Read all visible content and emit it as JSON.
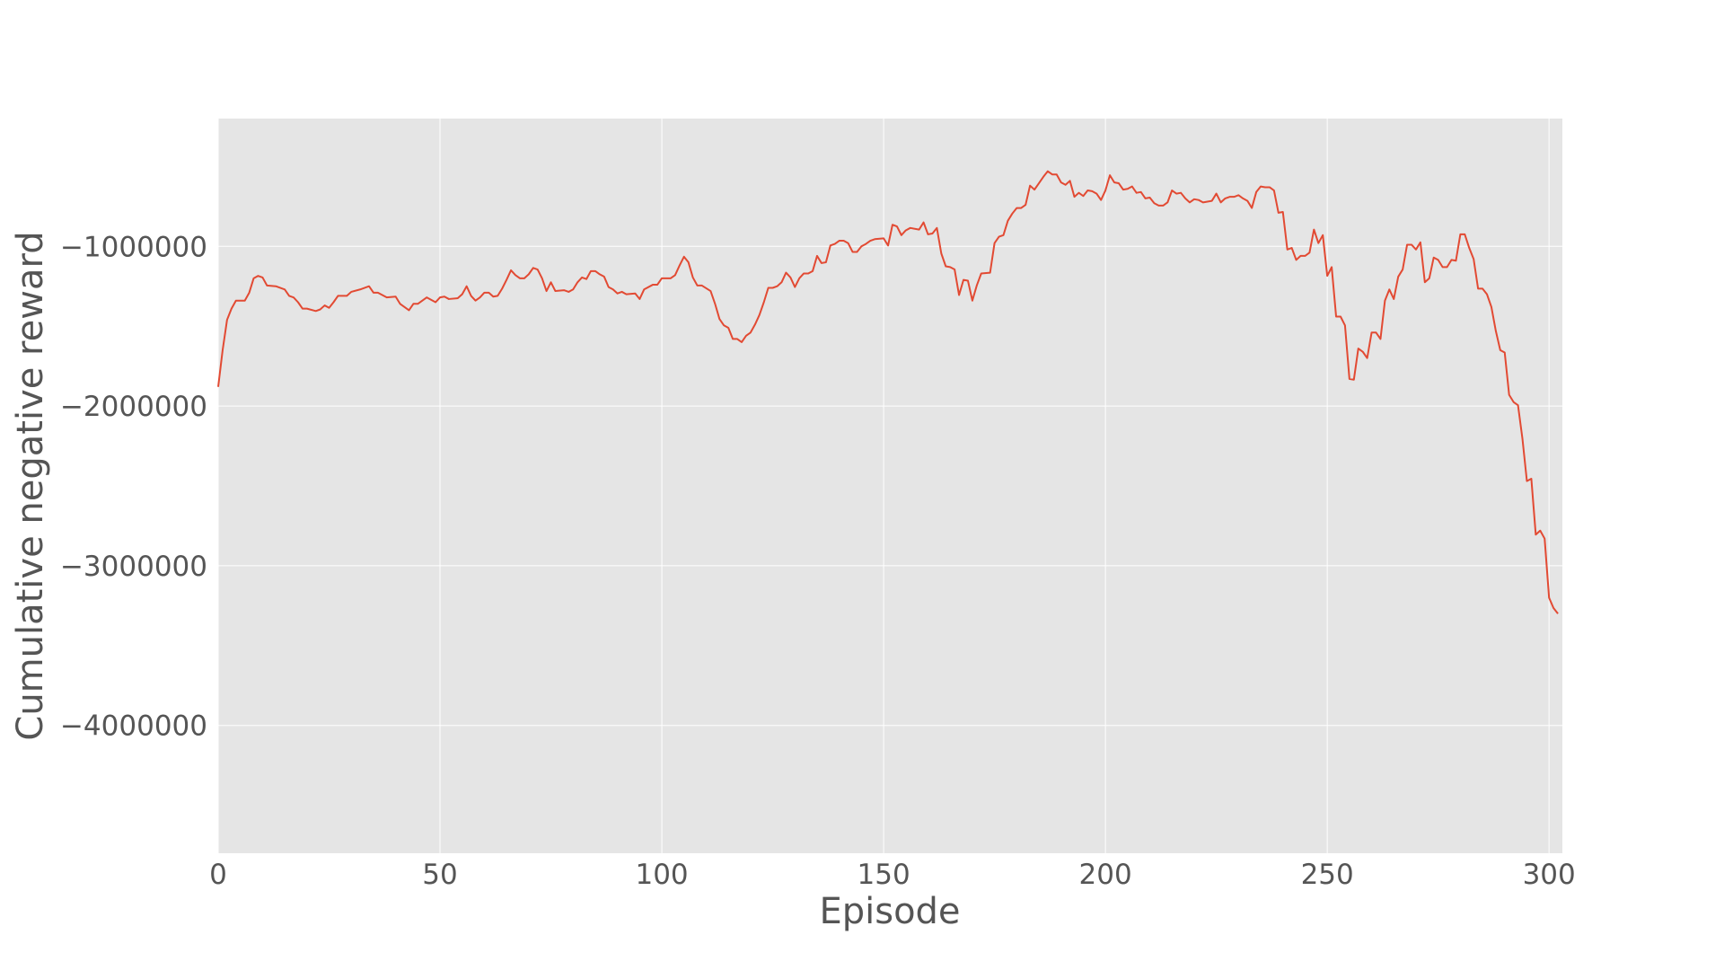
{
  "chart_data": {
    "type": "line",
    "style": "ggplot",
    "xlabel": "Episode",
    "ylabel": "Cumulative negative reward",
    "xlim": [
      0,
      303
    ],
    "ylim": [
      -4800000,
      -200000
    ],
    "grid": true,
    "x_ticks": [
      0,
      50,
      100,
      150,
      200,
      250,
      300
    ],
    "x_tick_labels": [
      "0",
      "50",
      "100",
      "150",
      "200",
      "250",
      "300"
    ],
    "y_ticks": [
      -1000000,
      -2000000,
      -3000000,
      -4000000
    ],
    "y_tick_labels": [
      "−1000000",
      "−2000000",
      "−3000000",
      "−4000000"
    ],
    "colors": {
      "line": "#E24A33",
      "plot_background": "#E5E5E5",
      "grid": "#FFFFFF",
      "text": "#555555"
    },
    "series": [
      {
        "points": [
          [
            0,
            -1880000
          ],
          [
            1,
            -1650000
          ],
          [
            2,
            -1460000
          ],
          [
            3,
            -1390000
          ],
          [
            4,
            -1340000
          ],
          [
            6,
            -1340000
          ],
          [
            7,
            -1290000
          ],
          [
            8,
            -1200000
          ],
          [
            9,
            -1185000
          ],
          [
            10,
            -1195000
          ],
          [
            11,
            -1245000
          ],
          [
            13,
            -1250000
          ],
          [
            15,
            -1270000
          ],
          [
            16,
            -1310000
          ],
          [
            17,
            -1320000
          ],
          [
            18,
            -1350000
          ],
          [
            19,
            -1390000
          ],
          [
            20,
            -1390000
          ],
          [
            22,
            -1405000
          ],
          [
            23,
            -1395000
          ],
          [
            24,
            -1370000
          ],
          [
            25,
            -1385000
          ],
          [
            26,
            -1350000
          ],
          [
            27,
            -1310000
          ],
          [
            29,
            -1310000
          ],
          [
            30,
            -1285000
          ],
          [
            32,
            -1270000
          ],
          [
            34,
            -1250000
          ],
          [
            35,
            -1290000
          ],
          [
            36,
            -1290000
          ],
          [
            38,
            -1320000
          ],
          [
            40,
            -1315000
          ],
          [
            41,
            -1360000
          ],
          [
            43,
            -1400000
          ],
          [
            44,
            -1360000
          ],
          [
            45,
            -1360000
          ],
          [
            47,
            -1320000
          ],
          [
            49,
            -1350000
          ],
          [
            50,
            -1320000
          ],
          [
            51,
            -1315000
          ],
          [
            52,
            -1330000
          ],
          [
            54,
            -1325000
          ],
          [
            55,
            -1300000
          ],
          [
            56,
            -1250000
          ],
          [
            57,
            -1310000
          ],
          [
            58,
            -1340000
          ],
          [
            59,
            -1320000
          ],
          [
            60,
            -1290000
          ],
          [
            61,
            -1290000
          ],
          [
            62,
            -1315000
          ],
          [
            63,
            -1310000
          ],
          [
            64,
            -1265000
          ],
          [
            65,
            -1210000
          ],
          [
            66,
            -1150000
          ],
          [
            67,
            -1180000
          ],
          [
            68,
            -1200000
          ],
          [
            69,
            -1200000
          ],
          [
            70,
            -1175000
          ],
          [
            71,
            -1135000
          ],
          [
            72,
            -1145000
          ],
          [
            73,
            -1200000
          ],
          [
            74,
            -1280000
          ],
          [
            75,
            -1225000
          ],
          [
            76,
            -1280000
          ],
          [
            78,
            -1275000
          ],
          [
            79,
            -1285000
          ],
          [
            80,
            -1270000
          ],
          [
            81,
            -1225000
          ],
          [
            82,
            -1195000
          ],
          [
            83,
            -1205000
          ],
          [
            84,
            -1155000
          ],
          [
            85,
            -1155000
          ],
          [
            86,
            -1175000
          ],
          [
            87,
            -1190000
          ],
          [
            88,
            -1255000
          ],
          [
            89,
            -1270000
          ],
          [
            90,
            -1295000
          ],
          [
            91,
            -1285000
          ],
          [
            92,
            -1300000
          ],
          [
            94,
            -1295000
          ],
          [
            95,
            -1330000
          ],
          [
            96,
            -1270000
          ],
          [
            98,
            -1240000
          ],
          [
            99,
            -1240000
          ],
          [
            100,
            -1200000
          ],
          [
            101,
            -1200000
          ],
          [
            102,
            -1200000
          ],
          [
            103,
            -1180000
          ],
          [
            104,
            -1120000
          ],
          [
            105,
            -1065000
          ],
          [
            106,
            -1100000
          ],
          [
            107,
            -1195000
          ],
          [
            108,
            -1245000
          ],
          [
            109,
            -1245000
          ],
          [
            111,
            -1280000
          ],
          [
            112,
            -1360000
          ],
          [
            113,
            -1455000
          ],
          [
            114,
            -1495000
          ],
          [
            115,
            -1510000
          ],
          [
            116,
            -1580000
          ],
          [
            117,
            -1580000
          ],
          [
            118,
            -1600000
          ],
          [
            119,
            -1560000
          ],
          [
            120,
            -1540000
          ],
          [
            121,
            -1490000
          ],
          [
            122,
            -1430000
          ],
          [
            123,
            -1350000
          ],
          [
            124,
            -1260000
          ],
          [
            125,
            -1260000
          ],
          [
            126,
            -1250000
          ],
          [
            127,
            -1225000
          ],
          [
            128,
            -1165000
          ],
          [
            129,
            -1195000
          ],
          [
            130,
            -1255000
          ],
          [
            131,
            -1200000
          ],
          [
            132,
            -1170000
          ],
          [
            133,
            -1170000
          ],
          [
            134,
            -1155000
          ],
          [
            135,
            -1060000
          ],
          [
            136,
            -1105000
          ],
          [
            137,
            -1100000
          ],
          [
            138,
            -995000
          ],
          [
            139,
            -985000
          ],
          [
            140,
            -965000
          ],
          [
            141,
            -965000
          ],
          [
            142,
            -980000
          ],
          [
            143,
            -1035000
          ],
          [
            144,
            -1035000
          ],
          [
            145,
            -1000000
          ],
          [
            146,
            -985000
          ],
          [
            147,
            -965000
          ],
          [
            148,
            -955000
          ],
          [
            150,
            -950000
          ],
          [
            151,
            -995000
          ],
          [
            152,
            -865000
          ],
          [
            153,
            -875000
          ],
          [
            154,
            -930000
          ],
          [
            155,
            -900000
          ],
          [
            156,
            -885000
          ],
          [
            158,
            -895000
          ],
          [
            159,
            -850000
          ],
          [
            160,
            -925000
          ],
          [
            161,
            -920000
          ],
          [
            162,
            -885000
          ],
          [
            163,
            -1045000
          ],
          [
            164,
            -1125000
          ],
          [
            165,
            -1130000
          ],
          [
            166,
            -1145000
          ],
          [
            167,
            -1305000
          ],
          [
            168,
            -1210000
          ],
          [
            169,
            -1215000
          ],
          [
            170,
            -1340000
          ],
          [
            171,
            -1245000
          ],
          [
            172,
            -1170000
          ],
          [
            174,
            -1165000
          ],
          [
            175,
            -980000
          ],
          [
            176,
            -940000
          ],
          [
            177,
            -930000
          ],
          [
            178,
            -840000
          ],
          [
            179,
            -795000
          ],
          [
            180,
            -760000
          ],
          [
            181,
            -760000
          ],
          [
            182,
            -740000
          ],
          [
            183,
            -620000
          ],
          [
            184,
            -645000
          ],
          [
            185,
            -605000
          ],
          [
            186,
            -565000
          ],
          [
            187,
            -530000
          ],
          [
            188,
            -550000
          ],
          [
            189,
            -550000
          ],
          [
            190,
            -600000
          ],
          [
            191,
            -615000
          ],
          [
            192,
            -590000
          ],
          [
            193,
            -690000
          ],
          [
            194,
            -665000
          ],
          [
            195,
            -685000
          ],
          [
            196,
            -650000
          ],
          [
            197,
            -655000
          ],
          [
            198,
            -670000
          ],
          [
            199,
            -710000
          ],
          [
            200,
            -650000
          ],
          [
            201,
            -555000
          ],
          [
            202,
            -600000
          ],
          [
            203,
            -605000
          ],
          [
            204,
            -645000
          ],
          [
            205,
            -640000
          ],
          [
            206,
            -625000
          ],
          [
            207,
            -665000
          ],
          [
            208,
            -660000
          ],
          [
            209,
            -700000
          ],
          [
            210,
            -695000
          ],
          [
            211,
            -730000
          ],
          [
            212,
            -745000
          ],
          [
            213,
            -745000
          ],
          [
            214,
            -725000
          ],
          [
            215,
            -650000
          ],
          [
            216,
            -670000
          ],
          [
            217,
            -665000
          ],
          [
            218,
            -700000
          ],
          [
            219,
            -725000
          ],
          [
            220,
            -705000
          ],
          [
            221,
            -710000
          ],
          [
            222,
            -725000
          ],
          [
            224,
            -715000
          ],
          [
            225,
            -670000
          ],
          [
            226,
            -725000
          ],
          [
            227,
            -700000
          ],
          [
            228,
            -690000
          ],
          [
            229,
            -690000
          ],
          [
            230,
            -680000
          ],
          [
            231,
            -700000
          ],
          [
            232,
            -715000
          ],
          [
            233,
            -760000
          ],
          [
            234,
            -660000
          ],
          [
            235,
            -625000
          ],
          [
            236,
            -630000
          ],
          [
            237,
            -630000
          ],
          [
            238,
            -650000
          ],
          [
            239,
            -790000
          ],
          [
            240,
            -785000
          ],
          [
            241,
            -1020000
          ],
          [
            242,
            -1010000
          ],
          [
            243,
            -1085000
          ],
          [
            244,
            -1060000
          ],
          [
            245,
            -1060000
          ],
          [
            246,
            -1040000
          ],
          [
            247,
            -895000
          ],
          [
            248,
            -980000
          ],
          [
            249,
            -930000
          ],
          [
            250,
            -1185000
          ],
          [
            251,
            -1130000
          ],
          [
            252,
            -1440000
          ],
          [
            253,
            -1440000
          ],
          [
            254,
            -1495000
          ],
          [
            255,
            -1830000
          ],
          [
            256,
            -1835000
          ],
          [
            257,
            -1640000
          ],
          [
            258,
            -1660000
          ],
          [
            259,
            -1700000
          ],
          [
            260,
            -1540000
          ],
          [
            261,
            -1540000
          ],
          [
            262,
            -1580000
          ],
          [
            263,
            -1340000
          ],
          [
            264,
            -1270000
          ],
          [
            265,
            -1330000
          ],
          [
            266,
            -1190000
          ],
          [
            267,
            -1145000
          ],
          [
            268,
            -990000
          ],
          [
            269,
            -990000
          ],
          [
            270,
            -1020000
          ],
          [
            271,
            -975000
          ],
          [
            272,
            -1225000
          ],
          [
            273,
            -1200000
          ],
          [
            274,
            -1070000
          ],
          [
            275,
            -1085000
          ],
          [
            276,
            -1130000
          ],
          [
            277,
            -1130000
          ],
          [
            278,
            -1085000
          ],
          [
            279,
            -1090000
          ],
          [
            280,
            -925000
          ],
          [
            281,
            -925000
          ],
          [
            282,
            -1010000
          ],
          [
            283,
            -1080000
          ],
          [
            284,
            -1265000
          ],
          [
            285,
            -1265000
          ],
          [
            286,
            -1300000
          ],
          [
            287,
            -1380000
          ],
          [
            288,
            -1530000
          ],
          [
            289,
            -1650000
          ],
          [
            290,
            -1665000
          ],
          [
            291,
            -1930000
          ],
          [
            292,
            -1975000
          ],
          [
            293,
            -1995000
          ],
          [
            294,
            -2205000
          ],
          [
            295,
            -2470000
          ],
          [
            296,
            -2455000
          ],
          [
            297,
            -2805000
          ],
          [
            298,
            -2780000
          ],
          [
            299,
            -2830000
          ],
          [
            300,
            -3200000
          ],
          [
            301,
            -3265000
          ],
          [
            302,
            -3300000
          ]
        ]
      }
    ]
  }
}
